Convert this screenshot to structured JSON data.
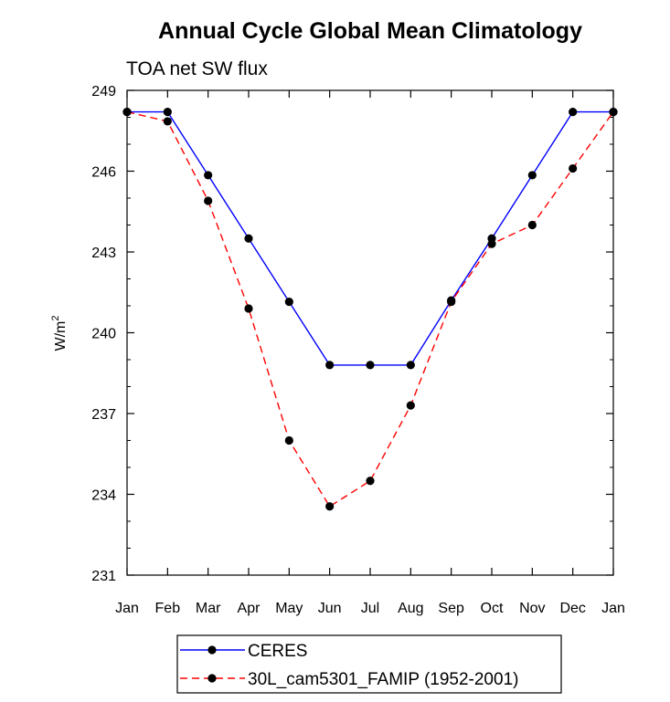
{
  "chart_data": {
    "type": "line",
    "title": "Annual Cycle Global Mean Climatology",
    "subtitle": "TOA net SW flux",
    "xlabel": "",
    "ylabel": "W/m",
    "ylabel_sup": "2",
    "categories": [
      "Jan",
      "Feb",
      "Mar",
      "Apr",
      "May",
      "Jun",
      "Jul",
      "Aug",
      "Sep",
      "Oct",
      "Nov",
      "Dec",
      "Jan"
    ],
    "ylim": [
      231,
      249
    ],
    "yticks": [
      231,
      234,
      237,
      240,
      243,
      246,
      249
    ],
    "series": [
      {
        "name": "CERES",
        "color": "#0000ff",
        "dashed": false,
        "values": [
          248.2,
          248.2,
          245.85,
          243.5,
          241.15,
          238.8,
          238.8,
          238.8,
          241.2,
          243.5,
          245.85,
          248.2,
          248.2
        ]
      },
      {
        "name": "30L_cam5301_FAMIP (1952-2001)",
        "color": "#ff0000",
        "dashed": true,
        "values": [
          248.2,
          247.85,
          244.9,
          240.9,
          236.0,
          233.55,
          234.5,
          237.3,
          241.15,
          243.3,
          244.0,
          246.1,
          248.2
        ]
      }
    ]
  }
}
